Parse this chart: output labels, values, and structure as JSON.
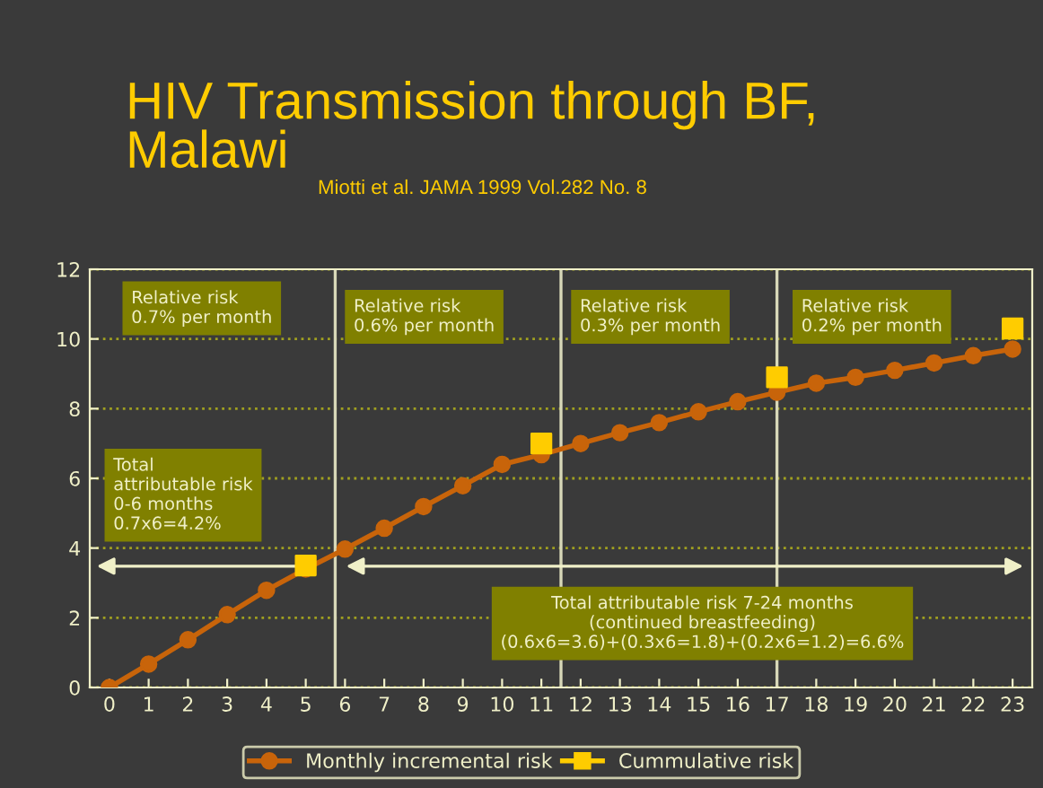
{
  "chart_data": {
    "type": "line",
    "title": "HIV Transmission through BF,\nMalawi",
    "subtitle": "Miotti et al. JAMA 1999 Vol.282 No. 8",
    "x": [
      0,
      1,
      2,
      3,
      4,
      5,
      6,
      7,
      8,
      9,
      10,
      11,
      12,
      13,
      14,
      15,
      16,
      17,
      18,
      19,
      20,
      21,
      22,
      23
    ],
    "series": [
      {
        "name": "Monthly incremental risk",
        "color": "#c8640a",
        "marker": "circle",
        "values": [
          0,
          0.67,
          1.37,
          2.09,
          2.79,
          3.4,
          3.97,
          4.57,
          5.19,
          5.79,
          6.4,
          6.68,
          7.0,
          7.31,
          7.6,
          7.91,
          8.2,
          8.47,
          8.73,
          8.9,
          9.1,
          9.31,
          9.52,
          9.71
        ]
      },
      {
        "name": "Cummulative risk",
        "type": "scatter",
        "color": "#ffcc00",
        "marker": "square",
        "values": [
          null,
          null,
          null,
          null,
          null,
          3.5,
          null,
          null,
          null,
          null,
          null,
          7.0,
          null,
          null,
          null,
          null,
          null,
          8.9,
          null,
          null,
          null,
          null,
          null,
          10.3
        ]
      }
    ],
    "xlim": [
      -0.5,
      23.5
    ],
    "xticks": [
      0,
      1,
      2,
      3,
      4,
      5,
      6,
      7,
      8,
      9,
      10,
      11,
      12,
      13,
      14,
      15,
      16,
      17,
      18,
      19,
      20,
      21,
      22,
      23
    ],
    "ylim": [
      0,
      12
    ],
    "yticks": [
      0,
      2,
      4,
      6,
      8,
      10,
      12
    ],
    "ref_lines": [
      {
        "axis": "x",
        "value": 5.75,
        "color": "#d8d8b8"
      },
      {
        "axis": "x",
        "value": 11.5,
        "color": "#d8d8b8"
      },
      {
        "axis": "x",
        "value": 17,
        "color": "#d8d8b8"
      }
    ],
    "annotations": [
      "Relative risk\n0.7% per month",
      "Relative risk\n0.6% per month",
      "Relative risk\n0.3% per month",
      "Relative risk\n0.2% per month",
      "Total\nattributable risk\n0-6 months\n0.7x6=4.2%",
      "Total attributable risk 7-24 months\n(continued breastfeeding)\n(0.6x6=3.6)+(0.3x6=1.8)+(0.2x6=1.2)=6.6%"
    ],
    "grid": "y",
    "legend": "bottom",
    "line_style": "solid"
  }
}
